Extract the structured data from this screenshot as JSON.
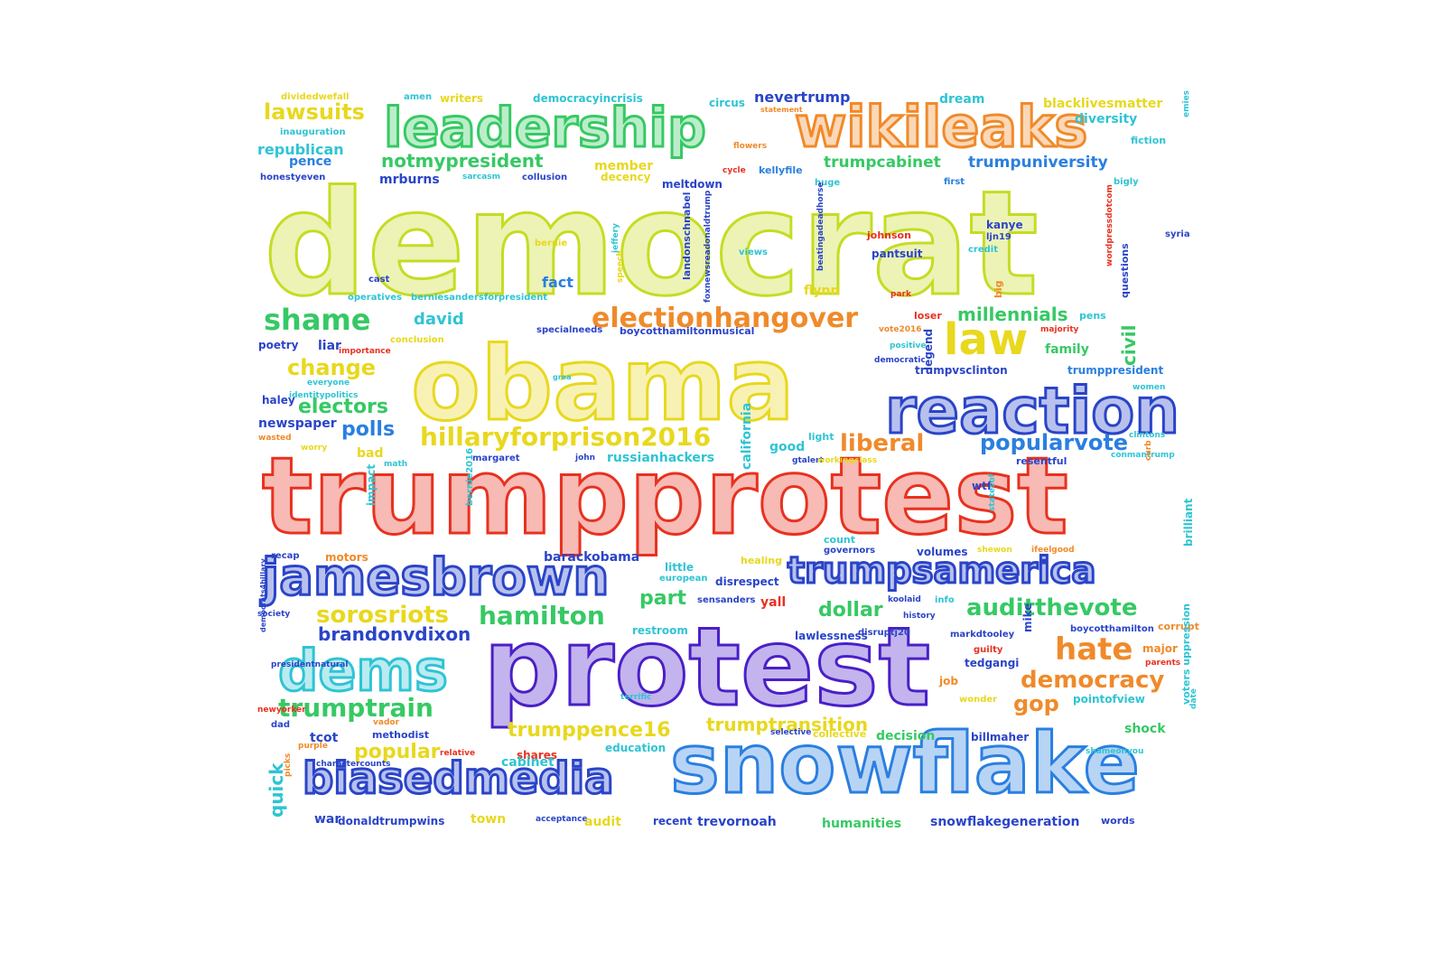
{
  "palette": {
    "red": "#e8311f",
    "orange": "#f08a2a",
    "yellow": "#e8d81e",
    "lime": "#c5dc22",
    "green": "#36c964",
    "teal": "#2fc4d4",
    "blue": "#2a7fe0",
    "indigo": "#2a44c8",
    "violet": "#4a1fc8"
  },
  "words": [
    {
      "t": "trumpprotest",
      "c": "red"
    },
    {
      "t": "democrat",
      "c": "lime"
    },
    {
      "t": "protest",
      "c": "violet"
    },
    {
      "t": "obama",
      "c": "yellow"
    },
    {
      "t": "snowflake",
      "c": "blue"
    },
    {
      "t": "reaction",
      "c": "indigo"
    },
    {
      "t": "wikileaks",
      "c": "orange"
    },
    {
      "t": "leadership",
      "c": "green"
    },
    {
      "t": "jamesbrown",
      "c": "indigo"
    },
    {
      "t": "dems",
      "c": "teal"
    },
    {
      "t": "biasedmedia",
      "c": "indigo"
    },
    {
      "t": "trumpsamerica",
      "c": "indigo"
    },
    {
      "t": "electionhangover",
      "c": "orange"
    },
    {
      "t": "hillaryforprison2016",
      "c": "yellow"
    },
    {
      "t": "law",
      "c": "yellow"
    },
    {
      "t": "popularvote",
      "c": "blue"
    },
    {
      "t": "liberal",
      "c": "orange"
    },
    {
      "t": "shame",
      "c": "green"
    },
    {
      "t": "notmypresident",
      "c": "green"
    },
    {
      "t": "trumpcabinet",
      "c": "green"
    },
    {
      "t": "trumpuniversity",
      "c": "blue"
    },
    {
      "t": "lawsuits",
      "c": "yellow"
    },
    {
      "t": "hamilton",
      "c": "green"
    },
    {
      "t": "sorosriots",
      "c": "yellow"
    },
    {
      "t": "auditthevote",
      "c": "green"
    },
    {
      "t": "hate",
      "c": "orange"
    },
    {
      "t": "democracy",
      "c": "orange"
    },
    {
      "t": "trumptrain",
      "c": "green"
    },
    {
      "t": "millennials",
      "c": "green"
    },
    {
      "t": "electors",
      "c": "green"
    },
    {
      "t": "change",
      "c": "yellow"
    },
    {
      "t": "polls",
      "c": "blue"
    },
    {
      "t": "brandonvdixon",
      "c": "indigo"
    },
    {
      "t": "trumppence16",
      "c": "yellow"
    },
    {
      "t": "trumptransition",
      "c": "yellow"
    },
    {
      "t": "part",
      "c": "green"
    },
    {
      "t": "dollar",
      "c": "green"
    },
    {
      "t": "gop",
      "c": "orange"
    },
    {
      "t": "popular",
      "c": "yellow"
    },
    {
      "t": "david",
      "c": "teal"
    },
    {
      "t": "civil",
      "c": "green"
    },
    {
      "t": "california",
      "c": "teal"
    },
    {
      "t": "nevertrump",
      "c": "indigo"
    },
    {
      "t": "blacklivesmatter",
      "c": "yellow"
    },
    {
      "t": "republican",
      "c": "teal"
    },
    {
      "t": "pence",
      "c": "blue"
    },
    {
      "t": "member",
      "c": "yellow"
    },
    {
      "t": "kellyfile",
      "c": "blue"
    },
    {
      "t": "diversity",
      "c": "teal"
    },
    {
      "t": "fiction",
      "c": "teal"
    },
    {
      "t": "circus",
      "c": "teal"
    },
    {
      "t": "writers",
      "c": "yellow"
    },
    {
      "t": "amen",
      "c": "teal"
    },
    {
      "t": "dividedwefall",
      "c": "yellow"
    },
    {
      "t": "democracyincrisis",
      "c": "teal"
    },
    {
      "t": "dream",
      "c": "teal"
    },
    {
      "t": "inauguration",
      "c": "teal"
    },
    {
      "t": "honestyeven",
      "c": "indigo"
    },
    {
      "t": "mrburns",
      "c": "indigo"
    },
    {
      "t": "sarcasm",
      "c": "teal"
    },
    {
      "t": "collusion",
      "c": "indigo"
    },
    {
      "t": "decency",
      "c": "yellow"
    },
    {
      "t": "meltdown",
      "c": "indigo"
    },
    {
      "t": "huge",
      "c": "teal"
    },
    {
      "t": "first",
      "c": "blue"
    },
    {
      "t": "bigly",
      "c": "teal"
    },
    {
      "t": "statement",
      "c": "orange"
    },
    {
      "t": "flowers",
      "c": "orange"
    },
    {
      "t": "cycle",
      "c": "red"
    },
    {
      "t": "kanye",
      "c": "indigo"
    },
    {
      "t": "ljn19",
      "c": "indigo"
    },
    {
      "t": "credit",
      "c": "teal"
    },
    {
      "t": "syria",
      "c": "indigo"
    },
    {
      "t": "johnson",
      "c": "red"
    },
    {
      "t": "pantsuit",
      "c": "indigo"
    },
    {
      "t": "views",
      "c": "teal"
    },
    {
      "t": "bernie",
      "c": "yellow"
    },
    {
      "t": "fact",
      "c": "blue"
    },
    {
      "t": "cast",
      "c": "indigo"
    },
    {
      "t": "operatives",
      "c": "teal"
    },
    {
      "t": "berniesandersforpresident",
      "c": "teal"
    },
    {
      "t": "flynn",
      "c": "yellow"
    },
    {
      "t": "park",
      "c": "red"
    },
    {
      "t": "loser",
      "c": "red"
    },
    {
      "t": "pens",
      "c": "teal"
    },
    {
      "t": "poetry",
      "c": "indigo"
    },
    {
      "t": "liar",
      "c": "indigo"
    },
    {
      "t": "importance",
      "c": "red"
    },
    {
      "t": "conclusion",
      "c": "yellow"
    },
    {
      "t": "specialneeds",
      "c": "indigo"
    },
    {
      "t": "boycotthamiltonmusical",
      "c": "indigo"
    },
    {
      "t": "vote2016",
      "c": "orange"
    },
    {
      "t": "majority",
      "c": "red"
    },
    {
      "t": "family",
      "c": "green"
    },
    {
      "t": "questions",
      "c": "indigo"
    },
    {
      "t": "positive",
      "c": "teal"
    },
    {
      "t": "democratic",
      "c": "indigo"
    },
    {
      "t": "trumpvsclinton",
      "c": "indigo"
    },
    {
      "t": "trumppresident",
      "c": "blue"
    },
    {
      "t": "haley",
      "c": "indigo"
    },
    {
      "t": "everyone",
      "c": "teal"
    },
    {
      "t": "identitypolitics",
      "c": "teal"
    },
    {
      "t": "grea",
      "c": "teal"
    },
    {
      "t": "women",
      "c": "teal"
    },
    {
      "t": "newspaper",
      "c": "indigo"
    },
    {
      "t": "wasted",
      "c": "orange"
    },
    {
      "t": "worry",
      "c": "yellow"
    },
    {
      "t": "bad",
      "c": "yellow"
    },
    {
      "t": "math",
      "c": "teal"
    },
    {
      "t": "margaret",
      "c": "indigo"
    },
    {
      "t": "john",
      "c": "indigo"
    },
    {
      "t": "russianhackers",
      "c": "teal"
    },
    {
      "t": "good",
      "c": "teal"
    },
    {
      "t": "light",
      "c": "teal"
    },
    {
      "t": "gtalert",
      "c": "indigo"
    },
    {
      "t": "workingclass",
      "c": "yellow"
    },
    {
      "t": "resentful",
      "c": "indigo"
    },
    {
      "t": "conmantrump",
      "c": "teal"
    },
    {
      "t": "clintons",
      "c": "teal"
    },
    {
      "t": "impact",
      "c": "teal"
    },
    {
      "t": "bernie2016",
      "c": "teal"
    },
    {
      "t": "wtf",
      "c": "indigo"
    },
    {
      "t": "statesof",
      "c": "teal"
    },
    {
      "t": "curb",
      "c": "orange"
    },
    {
      "t": "count",
      "c": "teal"
    },
    {
      "t": "governors",
      "c": "indigo"
    },
    {
      "t": "volumes",
      "c": "indigo"
    },
    {
      "t": "shewon",
      "c": "yellow"
    },
    {
      "t": "ifeelgood",
      "c": "orange"
    },
    {
      "t": "recap",
      "c": "indigo"
    },
    {
      "t": "motors",
      "c": "orange"
    },
    {
      "t": "barackobama",
      "c": "indigo"
    },
    {
      "t": "healing",
      "c": "yellow"
    },
    {
      "t": "little",
      "c": "teal"
    },
    {
      "t": "european",
      "c": "teal"
    },
    {
      "t": "disrespect",
      "c": "indigo"
    },
    {
      "t": "yall",
      "c": "red"
    },
    {
      "t": "sensanders",
      "c": "indigo"
    },
    {
      "t": "koolaid",
      "c": "indigo"
    },
    {
      "t": "info",
      "c": "teal"
    },
    {
      "t": "history",
      "c": "indigo"
    },
    {
      "t": "brilliant",
      "c": "teal"
    },
    {
      "t": "society",
      "c": "indigo"
    },
    {
      "t": "restroom",
      "c": "teal"
    },
    {
      "t": "lawlessness",
      "c": "indigo"
    },
    {
      "t": "disruptj20",
      "c": "indigo"
    },
    {
      "t": "markdtooley",
      "c": "indigo"
    },
    {
      "t": "boycotthamilton",
      "c": "indigo"
    },
    {
      "t": "corrupt",
      "c": "orange"
    },
    {
      "t": "guilty",
      "c": "red"
    },
    {
      "t": "mike",
      "c": "indigo"
    },
    {
      "t": "major",
      "c": "orange"
    },
    {
      "t": "parents",
      "c": "red"
    },
    {
      "t": "tedgangi",
      "c": "indigo"
    },
    {
      "t": "job",
      "c": "orange"
    },
    {
      "t": "democrats4hillary",
      "c": "indigo"
    },
    {
      "t": "presidentnatural",
      "c": "indigo"
    },
    {
      "t": "terrific",
      "c": "teal"
    },
    {
      "t": "wonder",
      "c": "yellow"
    },
    {
      "t": "pointofview",
      "c": "teal"
    },
    {
      "t": "newyorker",
      "c": "red"
    },
    {
      "t": "dad",
      "c": "indigo"
    },
    {
      "t": "tcot",
      "c": "indigo"
    },
    {
      "t": "methodist",
      "c": "indigo"
    },
    {
      "t": "vador",
      "c": "orange"
    },
    {
      "t": "purple",
      "c": "orange"
    },
    {
      "t": "relative",
      "c": "red"
    },
    {
      "t": "shares",
      "c": "red"
    },
    {
      "t": "education",
      "c": "teal"
    },
    {
      "t": "selective",
      "c": "indigo"
    },
    {
      "t": "collective",
      "c": "yellow"
    },
    {
      "t": "decision",
      "c": "green"
    },
    {
      "t": "billmaher",
      "c": "indigo"
    },
    {
      "t": "shock",
      "c": "green"
    },
    {
      "t": "shameonyou",
      "c": "teal"
    },
    {
      "t": "voters uppression",
      "c": "teal"
    },
    {
      "t": "quick",
      "c": "teal"
    },
    {
      "t": "picks",
      "c": "orange"
    },
    {
      "t": "charactercounts",
      "c": "indigo"
    },
    {
      "t": "cabinet",
      "c": "teal"
    },
    {
      "t": "war",
      "c": "indigo"
    },
    {
      "t": "donaldtrumpwins",
      "c": "indigo"
    },
    {
      "t": "town",
      "c": "yellow"
    },
    {
      "t": "acceptance",
      "c": "indigo"
    },
    {
      "t": "audit",
      "c": "yellow"
    },
    {
      "t": "recent",
      "c": "indigo"
    },
    {
      "t": "trevornoah",
      "c": "indigo"
    },
    {
      "t": "humanities",
      "c": "green"
    },
    {
      "t": "snowflakegeneration",
      "c": "indigo"
    },
    {
      "t": "words",
      "c": "indigo"
    },
    {
      "t": "emies",
      "c": "teal"
    },
    {
      "t": "jeffery",
      "c": "teal"
    },
    {
      "t": "speech",
      "c": "yellow"
    },
    {
      "t": "landonschnabel",
      "c": "indigo"
    },
    {
      "t": "beatingadeadhorse",
      "c": "indigo"
    },
    {
      "t": "wordpressdotcom",
      "c": "red"
    },
    {
      "t": "legend",
      "c": "indigo"
    },
    {
      "t": "big",
      "c": "orange"
    },
    {
      "t": "foxnewsreadonaldtrump",
      "c": "indigo"
    },
    {
      "t": "date",
      "c": "teal"
    }
  ]
}
